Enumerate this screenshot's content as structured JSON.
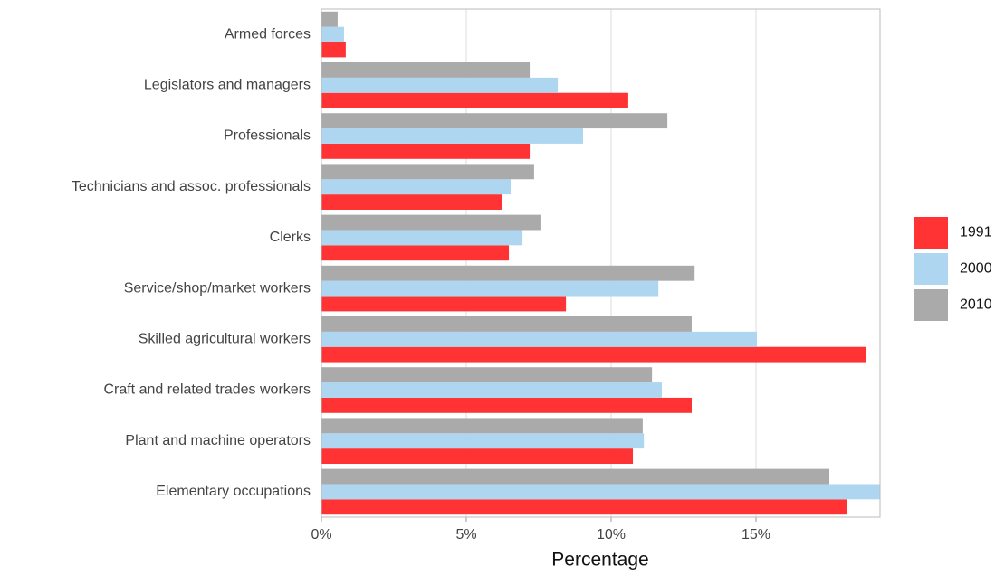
{
  "chart_data": {
    "type": "bar",
    "orientation": "horizontal",
    "x_label": "Percentage",
    "categories": [
      "Armed forces",
      "Legislators and managers",
      "Professionals",
      "Technicians and assoc. professionals",
      "Clerks",
      "Service/shop/market workers",
      "Skilled agricultural workers",
      "Craft and related trades workers",
      "Plant and machine operators",
      "Elementary occupations"
    ],
    "series": [
      {
        "name": "1991",
        "color": "#ff3333",
        "values": [
          0.84,
          10.59,
          7.19,
          6.25,
          6.47,
          8.44,
          18.81,
          12.78,
          10.75,
          18.13
        ]
      },
      {
        "name": "2000",
        "color": "#aed6f1",
        "values": [
          0.78,
          8.16,
          9.03,
          6.53,
          6.94,
          11.63,
          15.03,
          11.75,
          11.13,
          19.28
        ]
      },
      {
        "name": "2010",
        "color": "#aaaaaa",
        "values": [
          0.56,
          7.19,
          11.94,
          7.34,
          7.56,
          12.88,
          12.78,
          11.41,
          11.09,
          17.53
        ]
      }
    ],
    "xlim": [
      0,
      19.28
    ],
    "xticks": [
      {
        "value": 0,
        "label": "0%"
      },
      {
        "value": 5,
        "label": "5%"
      },
      {
        "value": 10,
        "label": "10%"
      },
      {
        "value": 15,
        "label": "15%"
      }
    ],
    "grid": true,
    "legend": "right"
  }
}
